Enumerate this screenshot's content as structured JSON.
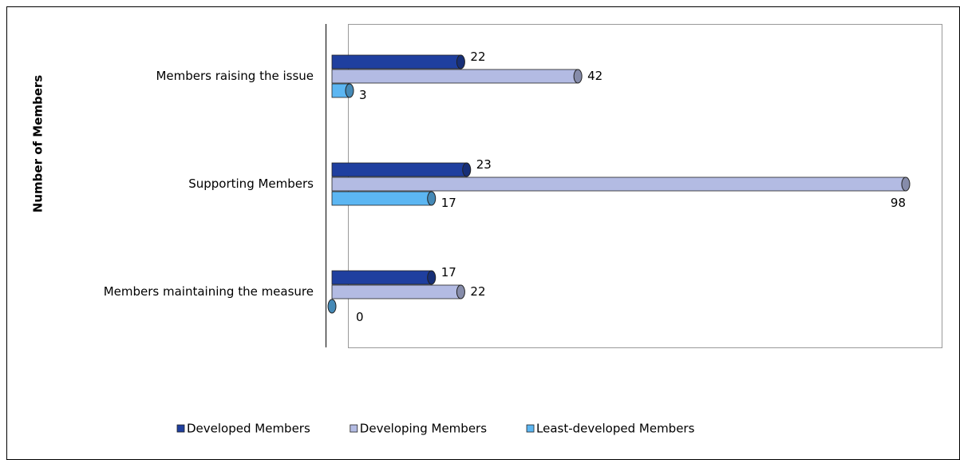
{
  "chart_data": {
    "type": "bar",
    "orientation": "horizontal",
    "y_label": "Number of  Members",
    "categories": [
      "Members raising the issue",
      "Supporting Members",
      "Members maintaining the measure"
    ],
    "series": [
      {
        "name": "Developed Members",
        "color": "#1f3f9f",
        "values": [
          22,
          23,
          17
        ]
      },
      {
        "name": "Developing Members",
        "color": "#b3bbe3",
        "values": [
          42,
          98,
          22
        ]
      },
      {
        "name": "Least-developed Members",
        "color": "#5cb6f2",
        "values": [
          3,
          17,
          0
        ]
      }
    ]
  }
}
